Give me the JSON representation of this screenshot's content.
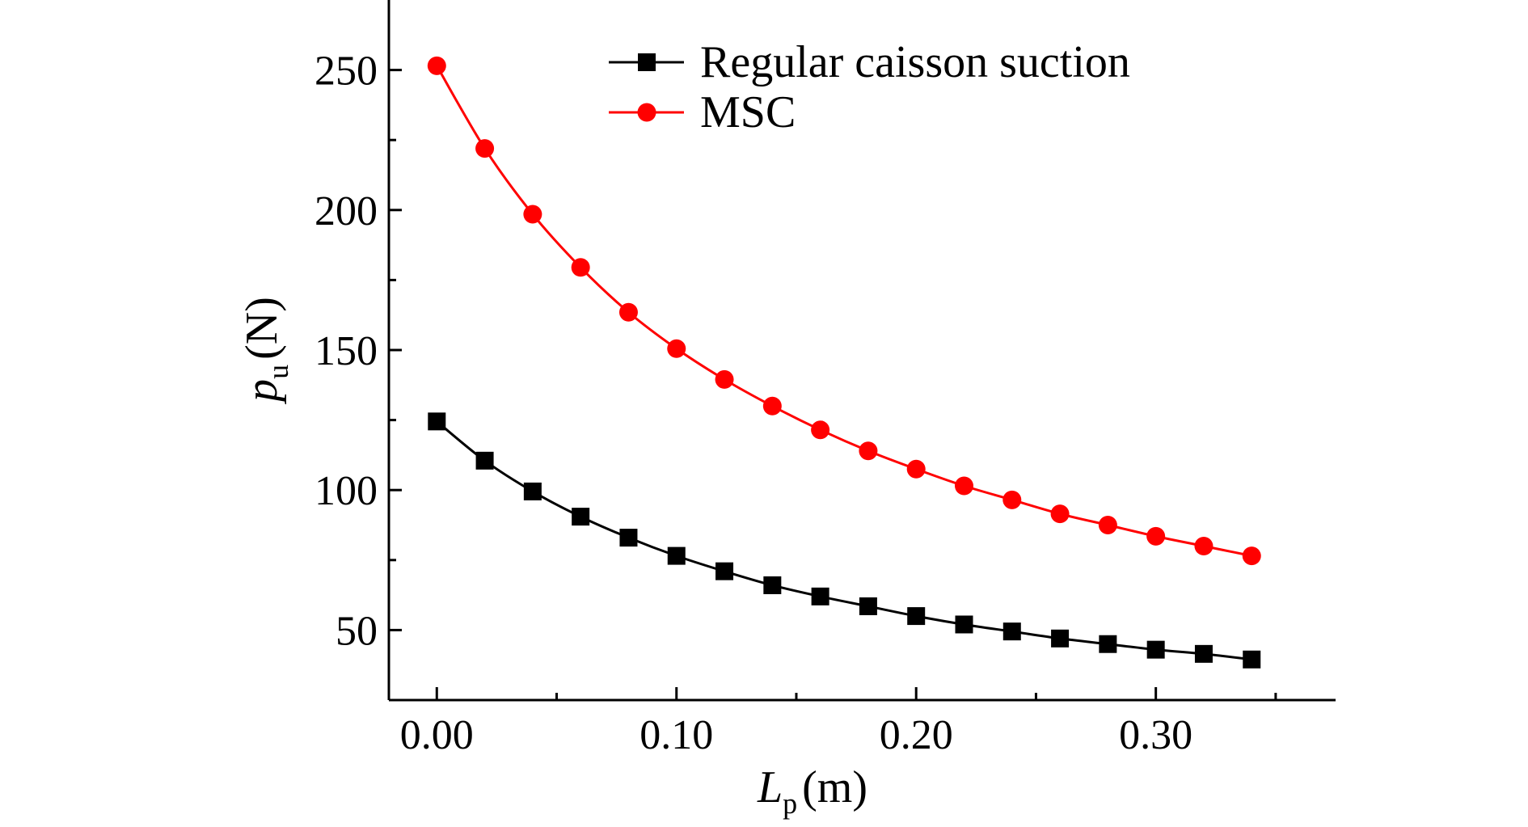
{
  "chart_data": {
    "type": "line",
    "title": "",
    "xlabel": {
      "main": "L",
      "sub": "p",
      "unit": "(m)"
    },
    "ylabel": {
      "main": "p",
      "sub": "u",
      "unit": "(N)"
    },
    "xlim": [
      -0.02,
      0.375
    ],
    "ylim": [
      25,
      275
    ],
    "x_ticks": [
      0.0,
      0.1,
      0.2,
      0.3
    ],
    "x_tick_labels": [
      "0.00",
      "0.10",
      "0.20",
      "0.30"
    ],
    "y_ticks": [
      50,
      100,
      150,
      200,
      250
    ],
    "y_tick_labels": [
      "50",
      "100",
      "150",
      "200",
      "250"
    ],
    "grid": false,
    "legend_position": "top-center",
    "x": [
      0.0,
      0.02,
      0.04,
      0.06,
      0.08,
      0.1,
      0.12,
      0.14,
      0.16,
      0.18,
      0.2,
      0.22,
      0.24,
      0.26,
      0.28,
      0.3,
      0.32,
      0.34
    ],
    "series": [
      {
        "name": "Regular caisson suction",
        "color": "#000000",
        "marker": "square",
        "values": [
          124.5,
          110.5,
          99.5,
          90.5,
          83,
          76.5,
          71,
          66,
          62,
          58.5,
          55,
          52,
          49.5,
          47,
          45,
          43,
          41.5,
          39.5
        ]
      },
      {
        "name": "MSC",
        "color": "#ff0000",
        "marker": "circle",
        "values": [
          251.5,
          222,
          198.5,
          179.5,
          163.5,
          150.5,
          139.5,
          130,
          121.5,
          114,
          107.5,
          101.5,
          96.5,
          91.5,
          87.5,
          83.5,
          80,
          76.5
        ]
      }
    ]
  }
}
